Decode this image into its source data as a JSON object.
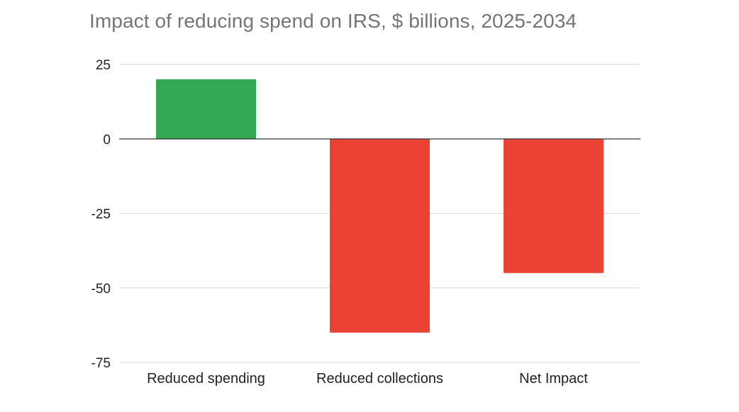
{
  "chart_data": {
    "type": "bar",
    "title": "Impact of reducing spend on IRS, $ billions, 2025-2034",
    "xlabel": "",
    "ylabel": "",
    "categories": [
      "Reduced spending",
      "Reduced collections",
      "Net Impact"
    ],
    "values": [
      20,
      -65,
      -45
    ],
    "bar_colors": [
      "#34a853",
      "#ea4335",
      "#ea4335"
    ],
    "yticks": [
      25,
      0,
      -25,
      -50,
      -75
    ],
    "ytick_labels": [
      "25",
      "0",
      "-25",
      "-50",
      "-75"
    ],
    "ylim": [
      -75,
      25
    ],
    "grid": true,
    "legend": "none",
    "gridline_color": "#d9d9d9",
    "baseline_color": "#333333"
  }
}
